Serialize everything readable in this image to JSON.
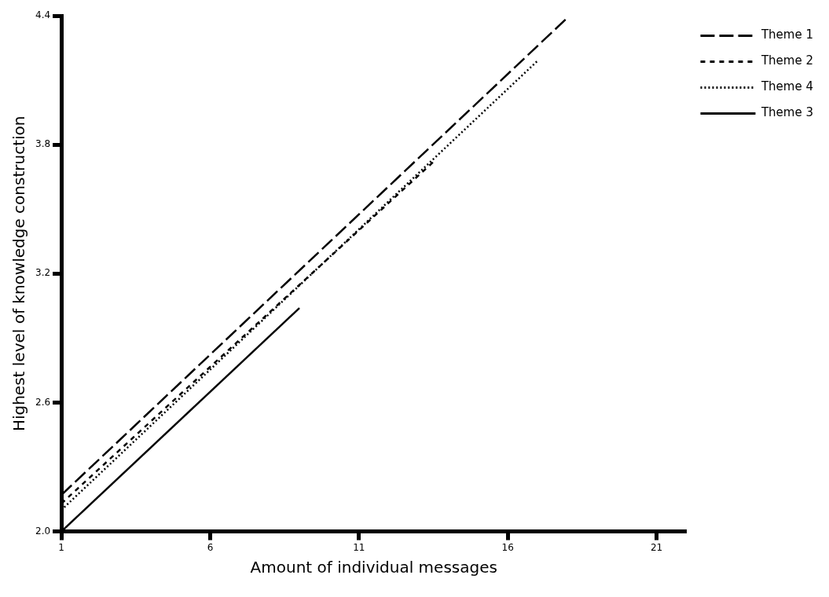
{
  "chart_data": {
    "type": "line",
    "xlabel": "Amount of individual messages",
    "ylabel": "Highest level of knowledge construction",
    "xlim": [
      1,
      22
    ],
    "xticks": [
      1,
      6,
      11,
      16,
      21
    ],
    "ylim": [
      2.0,
      4.4
    ],
    "yticks": [
      {
        "value": 2.0,
        "label": "2.0"
      },
      2.6,
      3.2,
      3.8,
      4.4
    ],
    "grid": false,
    "legend": "top right",
    "marker": "none",
    "series": [
      {
        "name": "Theme 1",
        "color": "#000000",
        "line_style": "dashed",
        "x": [
          1,
          18
        ],
        "values": [
          2.17,
          4.39
        ]
      },
      {
        "name": "Theme 2",
        "color": "#000000",
        "line_style": "short-dashed",
        "x": [
          1,
          13.5
        ],
        "values": [
          2.13,
          3.72
        ]
      },
      {
        "name": "Theme 4",
        "color": "#000000",
        "line_style": "dotted",
        "x": [
          1,
          17
        ],
        "values": [
          2.1,
          4.19
        ]
      },
      {
        "name": "Theme 3",
        "color": "#000000",
        "line_style": "solid",
        "x": [
          1,
          9
        ],
        "values": [
          2.0,
          3.04
        ]
      }
    ]
  }
}
